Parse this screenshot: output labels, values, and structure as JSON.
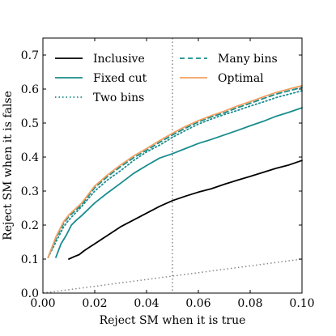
{
  "chart_data": {
    "type": "line",
    "xlabel": "Reject SM when it is true",
    "ylabel": "Reject SM when it is false",
    "xlim": [
      0.0,
      0.1
    ],
    "ylim": [
      0.0,
      0.75
    ],
    "xticks": [
      0.0,
      0.02,
      0.04,
      0.06,
      0.08,
      0.1
    ],
    "yticks": [
      0.0,
      0.1,
      0.2,
      0.3,
      0.4,
      0.5,
      0.6,
      0.7
    ],
    "xtick_labels": [
      "0.00",
      "0.02",
      "0.04",
      "0.06",
      "0.08",
      "0.10"
    ],
    "ytick_labels": [
      "0.0",
      "0.1",
      "0.2",
      "0.3",
      "0.4",
      "0.5",
      "0.6",
      "0.7"
    ],
    "vline_x": 0.05,
    "diagonal": [
      [
        0.0,
        0.0
      ],
      [
        0.1,
        0.1
      ]
    ],
    "legend_position": "top",
    "grid": false,
    "series": [
      {
        "name": "Inclusive",
        "color": "#000000",
        "style": "solid",
        "x": [
          0.01,
          0.012,
          0.014,
          0.016,
          0.018,
          0.02,
          0.025,
          0.03,
          0.035,
          0.04,
          0.045,
          0.05,
          0.055,
          0.06,
          0.065,
          0.07,
          0.075,
          0.08,
          0.085,
          0.09,
          0.095,
          0.1
        ],
        "y": [
          0.1,
          0.107,
          0.113,
          0.125,
          0.135,
          0.145,
          0.17,
          0.195,
          0.215,
          0.235,
          0.255,
          0.272,
          0.285,
          0.297,
          0.307,
          0.32,
          0.332,
          0.343,
          0.355,
          0.367,
          0.377,
          0.39
        ]
      },
      {
        "name": "Fixed cut",
        "color": "#1a8c8c",
        "style": "solid",
        "x": [
          0.005,
          0.007,
          0.009,
          0.011,
          0.013,
          0.015,
          0.02,
          0.025,
          0.03,
          0.035,
          0.04,
          0.045,
          0.05,
          0.055,
          0.06,
          0.065,
          0.07,
          0.075,
          0.08,
          0.085,
          0.09,
          0.095,
          0.1
        ],
        "y": [
          0.105,
          0.145,
          0.17,
          0.2,
          0.215,
          0.228,
          0.265,
          0.295,
          0.323,
          0.352,
          0.375,
          0.397,
          0.41,
          0.425,
          0.44,
          0.452,
          0.465,
          0.478,
          0.492,
          0.505,
          0.52,
          0.532,
          0.545
        ]
      },
      {
        "name": "Two bins",
        "color": "#1a8c8c",
        "style": "dotted",
        "x": [
          0.002,
          0.005,
          0.008,
          0.01,
          0.015,
          0.02,
          0.025,
          0.03,
          0.035,
          0.04,
          0.045,
          0.05,
          0.055,
          0.06,
          0.065,
          0.07,
          0.075,
          0.08,
          0.085,
          0.09,
          0.095,
          0.1
        ],
        "y": [
          0.105,
          0.15,
          0.195,
          0.215,
          0.255,
          0.3,
          0.333,
          0.36,
          0.39,
          0.415,
          0.435,
          0.458,
          0.478,
          0.497,
          0.512,
          0.525,
          0.537,
          0.55,
          0.562,
          0.575,
          0.585,
          0.595
        ]
      },
      {
        "name": "Many bins",
        "color": "#1a8c8c",
        "style": "dashed",
        "x": [
          0.002,
          0.005,
          0.008,
          0.01,
          0.015,
          0.02,
          0.025,
          0.03,
          0.035,
          0.04,
          0.045,
          0.05,
          0.055,
          0.06,
          0.065,
          0.07,
          0.075,
          0.08,
          0.085,
          0.09,
          0.095,
          0.1
        ],
        "y": [
          0.105,
          0.16,
          0.205,
          0.225,
          0.26,
          0.31,
          0.343,
          0.372,
          0.398,
          0.42,
          0.443,
          0.465,
          0.485,
          0.503,
          0.518,
          0.53,
          0.545,
          0.558,
          0.572,
          0.585,
          0.595,
          0.605
        ]
      },
      {
        "name": "Optimal",
        "color": "#f0a060",
        "style": "solid",
        "x": [
          0.002,
          0.005,
          0.008,
          0.01,
          0.015,
          0.02,
          0.025,
          0.03,
          0.035,
          0.04,
          0.045,
          0.05,
          0.055,
          0.06,
          0.065,
          0.07,
          0.075,
          0.08,
          0.085,
          0.09,
          0.095,
          0.1
        ],
        "y": [
          0.105,
          0.165,
          0.21,
          0.23,
          0.265,
          0.315,
          0.348,
          0.377,
          0.403,
          0.425,
          0.448,
          0.47,
          0.49,
          0.507,
          0.522,
          0.535,
          0.55,
          0.563,
          0.577,
          0.59,
          0.6,
          0.61
        ]
      }
    ]
  }
}
